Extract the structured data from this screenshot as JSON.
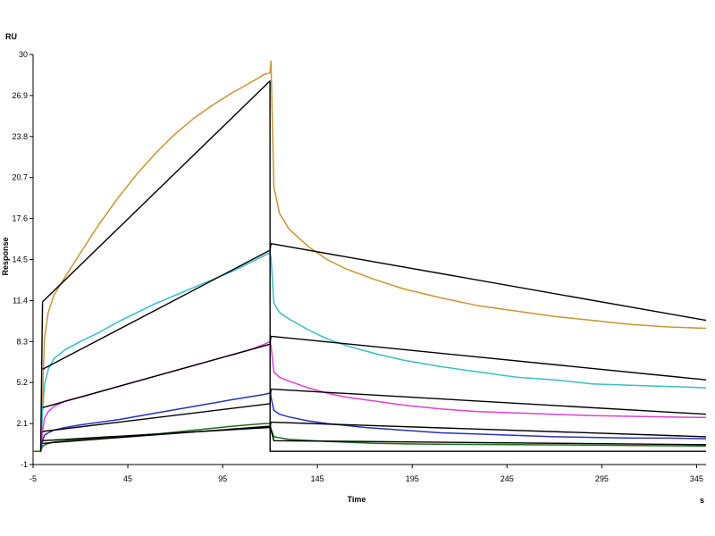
{
  "chart_data": {
    "type": "line",
    "title": "",
    "xlabel": "Time",
    "ylabel": "Response",
    "x_unit": "s",
    "y_unit": "RU",
    "xlim": [
      -5,
      350
    ],
    "ylim": [
      -1,
      30
    ],
    "x_ticks": [
      "-5",
      "45",
      "95",
      "145",
      "195",
      "245",
      "295",
      "345"
    ],
    "y_ticks": [
      "-1",
      "2.1",
      "5.2",
      "8.3",
      "11.4",
      "14.5",
      "17.6",
      "20.7",
      "23.8",
      "26.9",
      "30"
    ],
    "grid": false,
    "legend": "none",
    "series": [
      {
        "color": "#c8962e",
        "kind": "measured",
        "x": [
          -5,
          -3,
          -1,
          0,
          1,
          3,
          6,
          12,
          20,
          30,
          40,
          50,
          60,
          70,
          80,
          90,
          100,
          110,
          117,
          120,
          120.5,
          122,
          125,
          130,
          140,
          150,
          160,
          175,
          190,
          210,
          230,
          250,
          270,
          290,
          310,
          330,
          350
        ],
        "y": [
          0,
          0,
          0,
          4,
          8.5,
          10.5,
          11.8,
          13.2,
          15,
          17.2,
          19.2,
          21,
          22.6,
          24,
          25.2,
          26.2,
          27.1,
          27.9,
          28.5,
          28.6,
          29.5,
          20,
          18,
          16.8,
          15.5,
          14.5,
          13.8,
          13,
          12.3,
          11.6,
          11,
          10.6,
          10.2,
          9.9,
          9.6,
          9.4,
          9.3
        ]
      },
      {
        "color": "#35bfc4",
        "kind": "measured",
        "x": [
          -5,
          -1,
          0,
          1,
          3,
          6,
          12,
          20,
          30,
          40,
          50,
          60,
          70,
          80,
          90,
          100,
          110,
          117,
          120,
          120.5,
          122,
          125,
          130,
          140,
          150,
          160,
          175,
          190,
          210,
          230,
          250,
          270,
          290,
          310,
          330,
          350
        ],
        "y": [
          0,
          0,
          3,
          5,
          6.2,
          7,
          7.7,
          8.3,
          9,
          9.8,
          10.5,
          11.2,
          11.8,
          12.4,
          13,
          13.6,
          14.3,
          14.8,
          15,
          14.7,
          11.2,
          10.5,
          10,
          9.2,
          8.5,
          8,
          7.4,
          6.9,
          6.4,
          6,
          5.6,
          5.4,
          5.1,
          5,
          4.9,
          4.8
        ]
      },
      {
        "color": "#e03fd6",
        "kind": "measured",
        "x": [
          -5,
          -1,
          0,
          1,
          3,
          6,
          12,
          20,
          30,
          40,
          50,
          60,
          70,
          80,
          90,
          100,
          110,
          117,
          120,
          120.5,
          122,
          125,
          130,
          140,
          150,
          160,
          175,
          190,
          210,
          230,
          250,
          270,
          290,
          310,
          330,
          350
        ],
        "y": [
          0,
          0,
          1.5,
          2.5,
          3,
          3.4,
          3.8,
          4.1,
          4.5,
          4.9,
          5.3,
          5.7,
          6.1,
          6.5,
          6.9,
          7.3,
          7.7,
          8.1,
          8.3,
          8,
          6,
          5.6,
          5.3,
          4.8,
          4.4,
          4.1,
          3.8,
          3.5,
          3.2,
          3,
          2.9,
          2.8,
          2.7,
          2.65,
          2.6,
          2.55
        ]
      },
      {
        "color": "#2632b8",
        "kind": "measured",
        "x": [
          -5,
          -1,
          0,
          1,
          3,
          6,
          12,
          20,
          40,
          60,
          80,
          100,
          117,
          120,
          120.5,
          122,
          125,
          130,
          140,
          150,
          170,
          190,
          210,
          230,
          250,
          270,
          290,
          310,
          330,
          350
        ],
        "y": [
          0,
          0,
          0.8,
          1.2,
          1.4,
          1.6,
          1.8,
          2,
          2.4,
          2.9,
          3.4,
          3.9,
          4.3,
          4.4,
          4.1,
          3.1,
          2.8,
          2.6,
          2.3,
          2.1,
          1.8,
          1.6,
          1.4,
          1.3,
          1.2,
          1.1,
          1.05,
          1,
          1,
          0.95
        ]
      },
      {
        "color": "#1e6e1e",
        "kind": "measured",
        "x": [
          -5,
          -1,
          0,
          2,
          6,
          20,
          40,
          60,
          80,
          100,
          117,
          120,
          120.5,
          122,
          130,
          150,
          175,
          200,
          250,
          300,
          350
        ],
        "y": [
          0,
          0,
          0.4,
          0.55,
          0.7,
          0.9,
          1.1,
          1.3,
          1.6,
          1.9,
          2.1,
          2.1,
          1.7,
          1.1,
          0.9,
          0.75,
          0.6,
          0.55,
          0.5,
          0.45,
          0.4
        ]
      },
      {
        "color": "#000000",
        "kind": "fit",
        "x": [
          -1,
          0,
          120,
          120.01,
          350
        ],
        "y": [
          0,
          11.3,
          28,
          0,
          0
        ]
      },
      {
        "color": "#000000",
        "kind": "fit",
        "x": [
          0,
          120,
          120.5,
          350
        ],
        "y": [
          6.2,
          15.2,
          15.7,
          9.9
        ]
      },
      {
        "color": "#000000",
        "kind": "fit",
        "x": [
          0,
          120,
          120.5,
          350
        ],
        "y": [
          3.3,
          8.1,
          8.7,
          5.4
        ]
      },
      {
        "color": "#000000",
        "kind": "fit",
        "x": [
          0,
          120,
          120.5,
          350
        ],
        "y": [
          1.5,
          3.6,
          4.7,
          2.8
        ]
      },
      {
        "color": "#000000",
        "kind": "fit",
        "x": [
          0,
          120,
          120.5,
          350
        ],
        "y": [
          0.8,
          1.8,
          2.2,
          1.1
        ]
      },
      {
        "color": "#000000",
        "kind": "fit",
        "x": [
          0,
          120,
          120.5,
          122,
          350
        ],
        "y": [
          0.6,
          1.9,
          1.6,
          0.8,
          0.5
        ]
      }
    ]
  }
}
